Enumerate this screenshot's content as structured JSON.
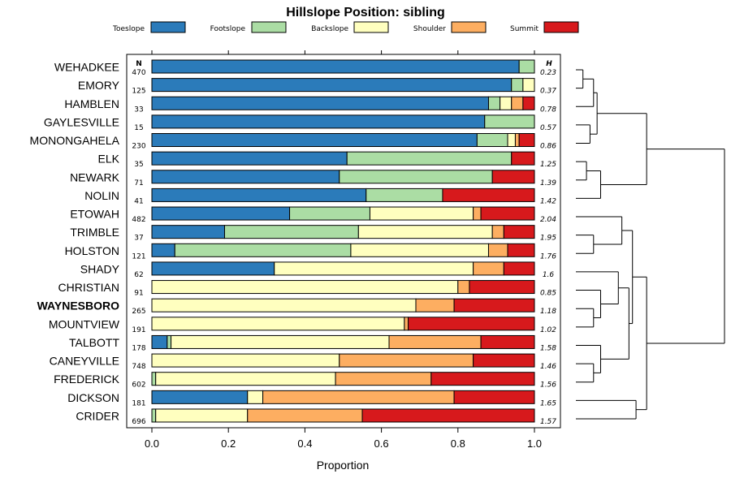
{
  "chart_data": {
    "type": "bar",
    "subtype": "stacked-horizontal-proportion",
    "title": "Hillslope Position: sibling",
    "xlabel": "Proportion",
    "ylabel": "",
    "xlim": [
      0,
      1
    ],
    "xticks": [
      "0.0",
      "0.2",
      "0.4",
      "0.6",
      "0.8",
      "1.0"
    ],
    "n_header": "N",
    "h_header": "H",
    "highlight": "WAYNESBORO",
    "legend": [
      {
        "name": "Toeslope",
        "color": "#2b7bba"
      },
      {
        "name": "Footslope",
        "color": "#abdda4"
      },
      {
        "name": "Backslope",
        "color": "#ffffbf"
      },
      {
        "name": "Shoulder",
        "color": "#fdae61"
      },
      {
        "name": "Summit",
        "color": "#d7191c"
      }
    ],
    "categories": [
      "WEHADKEE",
      "EMORY",
      "HAMBLEN",
      "GAYLESVILLE",
      "MONONGAHELA",
      "ELK",
      "NEWARK",
      "NOLIN",
      "ETOWAH",
      "TRIMBLE",
      "HOLSTON",
      "SHADY",
      "CHRISTIAN",
      "WAYNESBORO",
      "MOUNTVIEW",
      "TALBOTT",
      "CANEYVILLE",
      "FREDERICK",
      "DICKSON",
      "CRIDER"
    ],
    "n": [
      "470",
      "125",
      "33",
      "15",
      "230",
      "35",
      "71",
      "41",
      "482",
      "37",
      "121",
      "62",
      "91",
      "265",
      "191",
      "178",
      "748",
      "602",
      "181",
      "696"
    ],
    "h": [
      "0.23",
      "0.37",
      "0.78",
      "0.57",
      "0.86",
      "1.25",
      "1.39",
      "1.42",
      "2.04",
      "1.95",
      "1.76",
      "1.6",
      "0.85",
      "1.18",
      "1.02",
      "1.58",
      "1.46",
      "1.56",
      "1.65",
      "1.57"
    ],
    "series": [
      {
        "name": "Toeslope",
        "values": [
          0.96,
          0.94,
          0.88,
          0.87,
          0.85,
          0.51,
          0.49,
          0.56,
          0.36,
          0.19,
          0.06,
          0.32,
          0.0,
          0.0,
          0.0,
          0.04,
          0.0,
          0.0,
          0.25,
          0.0
        ]
      },
      {
        "name": "Footslope",
        "values": [
          0.04,
          0.03,
          0.03,
          0.13,
          0.08,
          0.43,
          0.4,
          0.2,
          0.21,
          0.35,
          0.46,
          0.0,
          0.0,
          0.0,
          0.0,
          0.01,
          0.0,
          0.01,
          0.0,
          0.01
        ]
      },
      {
        "name": "Backslope",
        "values": [
          0.0,
          0.03,
          0.03,
          0.0,
          0.02,
          0.0,
          0.0,
          0.0,
          0.27,
          0.35,
          0.36,
          0.52,
          0.8,
          0.69,
          0.66,
          0.57,
          0.49,
          0.47,
          0.04,
          0.24
        ]
      },
      {
        "name": "Shoulder",
        "values": [
          0.0,
          0.0,
          0.03,
          0.0,
          0.01,
          0.0,
          0.0,
          0.0,
          0.02,
          0.03,
          0.05,
          0.08,
          0.03,
          0.1,
          0.01,
          0.24,
          0.35,
          0.25,
          0.5,
          0.3
        ]
      },
      {
        "name": "Summit",
        "values": [
          0.0,
          0.0,
          0.03,
          0.0,
          0.04,
          0.06,
          0.11,
          0.24,
          0.14,
          0.08,
          0.07,
          0.08,
          0.17,
          0.21,
          0.33,
          0.14,
          0.16,
          0.27,
          0.21,
          0.45
        ]
      }
    ],
    "dendrogram": {
      "leaves": [
        "WEHADKEE",
        "EMORY",
        "HAMBLEN",
        "GAYLESVILLE",
        "MONONGAHELA",
        "ELK",
        "NEWARK",
        "NOLIN",
        "ETOWAH",
        "TRIMBLE",
        "HOLSTON",
        "SHADY",
        "CHRISTIAN",
        "WAYNESBORO",
        "MOUNTVIEW",
        "TALBOTT",
        "CANEYVILLE",
        "FREDERICK",
        "DICKSON",
        "CRIDER"
      ],
      "tree": [
        [
          [
            [
              [
                [
                  0,
                  1
                ],
                2
              ],
              [
                3,
                4
              ]
            ],
            [
              [
                5,
                6
              ],
              7
            ]
          ]
        ],
        [
          [
            [
              8,
              [
                9,
                10
              ]
            ],
            [
              [
                11,
                [
                  12,
                  [
                    13,
                    14
                  ]
                ]
              ],
              [
                15,
                [
                  16,
                  17
                ]
              ]
            ]
          ],
          [
            18,
            19
          ]
        ]
      ],
      "heights": {
        "0-1": 0.02,
        "0-2": 0.05,
        "3-4": 0.04,
        "0-4": 0.06,
        "5-6": 0.03,
        "5-7": 0.07,
        "0-7": 0.2,
        "9-10": 0.05,
        "8-10": 0.13,
        "13-14": 0.05,
        "12-14": 0.07,
        "11-14": 0.12,
        "16-17": 0.05,
        "15-17": 0.07,
        "11-17": 0.15,
        "8-17": 0.16,
        "18-19": 0.17,
        "8-19": 0.2,
        "all": 0.42
      }
    }
  }
}
